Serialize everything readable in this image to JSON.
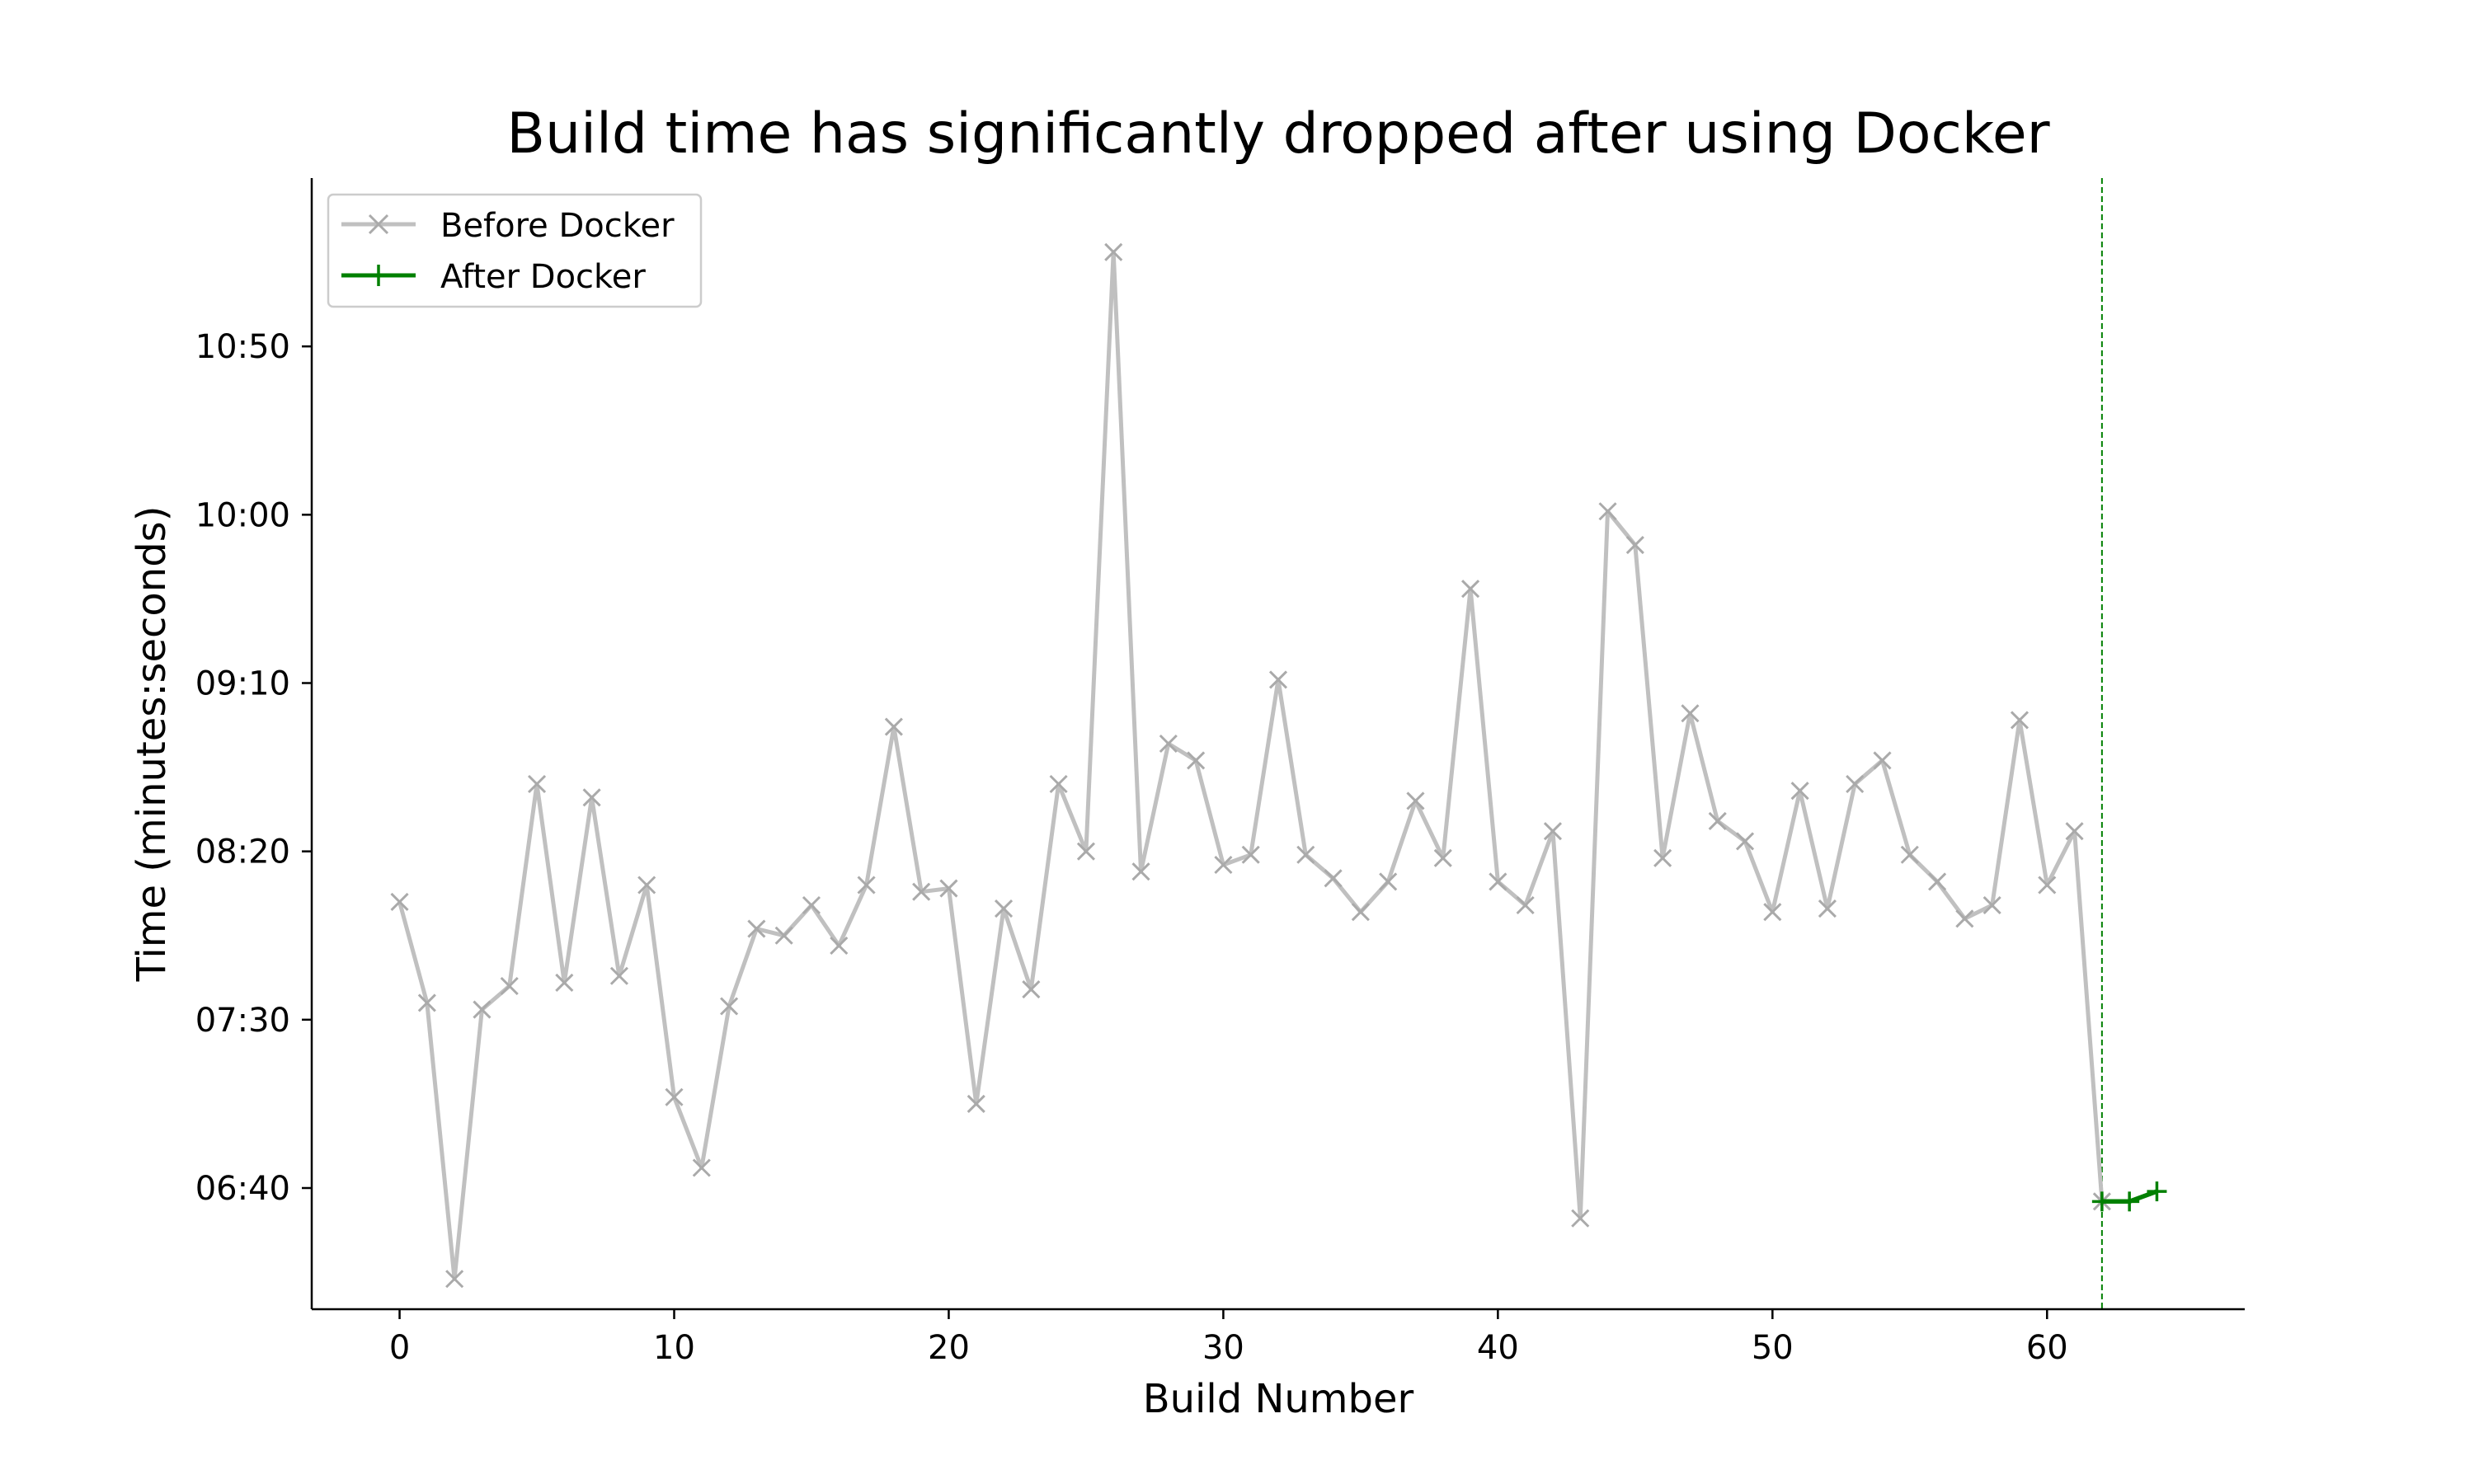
{
  "chart_data": {
    "type": "line",
    "title": "Build time has significantly dropped after using Docker",
    "xlabel": "Build Number",
    "ylabel": "Time (minutes:seconds)",
    "xlim": [
      -3.2,
      67.2
    ],
    "ylim": [
      364,
      700
    ],
    "x_ticks": [
      0,
      10,
      20,
      30,
      40,
      50,
      60
    ],
    "y_ticks": [
      {
        "value": 400,
        "label": "06:40"
      },
      {
        "value": 450,
        "label": "07:30"
      },
      {
        "value": 500,
        "label": "08:20"
      },
      {
        "value": 550,
        "label": "09:10"
      },
      {
        "value": 600,
        "label": "10:00"
      },
      {
        "value": 650,
        "label": "10:50"
      }
    ],
    "grid": false,
    "legend_position": "top-left",
    "vline_x": 62,
    "series": [
      {
        "name": "Before Docker",
        "color": "#c0c0c0",
        "marker": "x",
        "x": [
          0,
          1,
          2,
          3,
          4,
          5,
          6,
          7,
          8,
          9,
          10,
          11,
          12,
          13,
          14,
          15,
          16,
          17,
          18,
          19,
          20,
          21,
          22,
          23,
          24,
          25,
          26,
          27,
          28,
          29,
          30,
          31,
          32,
          33,
          34,
          35,
          36,
          37,
          38,
          39,
          40,
          41,
          42,
          43,
          44,
          45,
          46,
          47,
          48,
          49,
          50,
          51,
          52,
          53,
          54,
          55,
          56,
          57,
          58,
          59,
          60,
          61,
          62
        ],
        "values": [
          485,
          455,
          373,
          453,
          460,
          520,
          461,
          516,
          463,
          490,
          427,
          406,
          454,
          477,
          475,
          484,
          472,
          490,
          537,
          488,
          489,
          425,
          483,
          459,
          520,
          500,
          678,
          494,
          532,
          527,
          496,
          499,
          551,
          499,
          492,
          482,
          491,
          515,
          498,
          578,
          491,
          484,
          506,
          391,
          601,
          591,
          498,
          541,
          509,
          503,
          482,
          518,
          483,
          520,
          527,
          499,
          491,
          480,
          484,
          539,
          490,
          506,
          396
        ]
      },
      {
        "name": "After Docker",
        "color": "#008000",
        "marker": "+",
        "x": [
          62,
          63,
          64
        ],
        "values": [
          396,
          396,
          399
        ]
      }
    ]
  }
}
